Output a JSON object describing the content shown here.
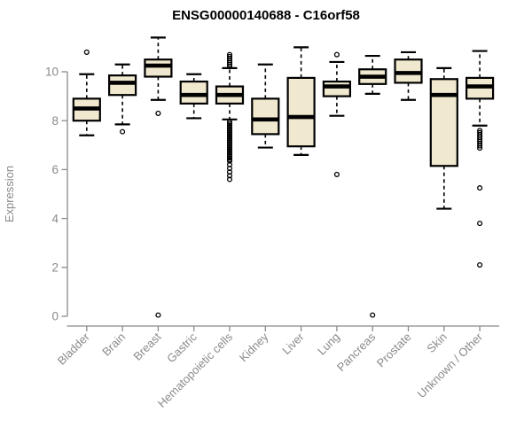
{
  "window": {
    "background": "#ffffff"
  },
  "chart_data": {
    "type": "boxplot",
    "title": "ENSG00000140688 - C16orf58",
    "xlabel": "",
    "ylabel": "Expression",
    "ylim": [
      0,
      11.6
    ],
    "yticks": [
      0,
      2,
      4,
      6,
      8,
      10
    ],
    "grid": false,
    "legend": "none",
    "categories": [
      "Bladder",
      "Brain",
      "Breast",
      "Gastric",
      "Hematopoietic cells",
      "Kidney",
      "Liver",
      "Lung",
      "Pancreas",
      "Prostate",
      "Skin",
      "Unknown / Other"
    ],
    "series": [
      {
        "name": "Bladder",
        "whisker_low": 7.4,
        "q1": 8.0,
        "median": 8.5,
        "q3": 8.9,
        "whisker_high": 9.9,
        "outliers": [
          10.8
        ]
      },
      {
        "name": "Brain",
        "whisker_low": 7.85,
        "q1": 9.05,
        "median": 9.55,
        "q3": 9.85,
        "whisker_high": 10.3,
        "outliers": [
          7.55
        ]
      },
      {
        "name": "Breast",
        "whisker_low": 8.85,
        "q1": 9.8,
        "median": 10.25,
        "q3": 10.5,
        "whisker_high": 11.4,
        "outliers": [
          8.3,
          0.05
        ]
      },
      {
        "name": "Gastric",
        "whisker_low": 8.1,
        "q1": 8.7,
        "median": 9.05,
        "q3": 9.6,
        "whisker_high": 9.9,
        "outliers": []
      },
      {
        "name": "Hematopoietic cells",
        "whisker_low": 8.05,
        "q1": 8.7,
        "median": 9.05,
        "q3": 9.4,
        "whisker_high": 10.15,
        "outliers": [
          10.7,
          10.62,
          10.54,
          10.46,
          10.38,
          10.3,
          10.22,
          7.95,
          7.88,
          7.81,
          7.74,
          7.67,
          7.6,
          7.53,
          7.46,
          7.39,
          7.32,
          7.25,
          7.18,
          7.11,
          7.04,
          6.97,
          6.9,
          6.83,
          6.76,
          6.69,
          6.62,
          6.55,
          6.48,
          6.41,
          6.35,
          6.2,
          6.05,
          5.9,
          5.75,
          5.6
        ]
      },
      {
        "name": "Kidney",
        "whisker_low": 6.9,
        "q1": 7.45,
        "median": 8.05,
        "q3": 8.9,
        "whisker_high": 10.3,
        "outliers": []
      },
      {
        "name": "Liver",
        "whisker_low": 6.6,
        "q1": 6.95,
        "median": 8.15,
        "q3": 9.75,
        "whisker_high": 11.0,
        "outliers": []
      },
      {
        "name": "Lung",
        "whisker_low": 8.2,
        "q1": 9.0,
        "median": 9.4,
        "q3": 9.6,
        "whisker_high": 10.4,
        "outliers": [
          10.7,
          5.8
        ]
      },
      {
        "name": "Pancreas",
        "whisker_low": 9.1,
        "q1": 9.5,
        "median": 9.8,
        "q3": 10.1,
        "whisker_high": 10.65,
        "outliers": [
          0.05
        ]
      },
      {
        "name": "Prostate",
        "whisker_low": 8.85,
        "q1": 9.55,
        "median": 9.95,
        "q3": 10.5,
        "whisker_high": 10.8,
        "outliers": []
      },
      {
        "name": "Skin",
        "whisker_low": 4.4,
        "q1": 6.15,
        "median": 9.05,
        "q3": 9.7,
        "whisker_high": 10.15,
        "outliers": []
      },
      {
        "name": "Unknown / Other",
        "whisker_low": 7.8,
        "q1": 8.9,
        "median": 9.4,
        "q3": 9.75,
        "whisker_high": 10.85,
        "outliers": [
          7.6,
          7.51,
          7.42,
          7.33,
          7.24,
          7.15,
          7.06,
          6.97,
          6.88,
          5.25,
          3.8,
          2.1
        ]
      }
    ]
  },
  "colors": {
    "box_fill": "#f0e9cf",
    "box_stroke": "#000000",
    "median": "#000000",
    "whisker": "#000000",
    "outlier_stroke": "#000000",
    "axis": "#8a8a8a",
    "tick_label": "#8a8a8a",
    "title": "#000000",
    "background": "#ffffff"
  }
}
